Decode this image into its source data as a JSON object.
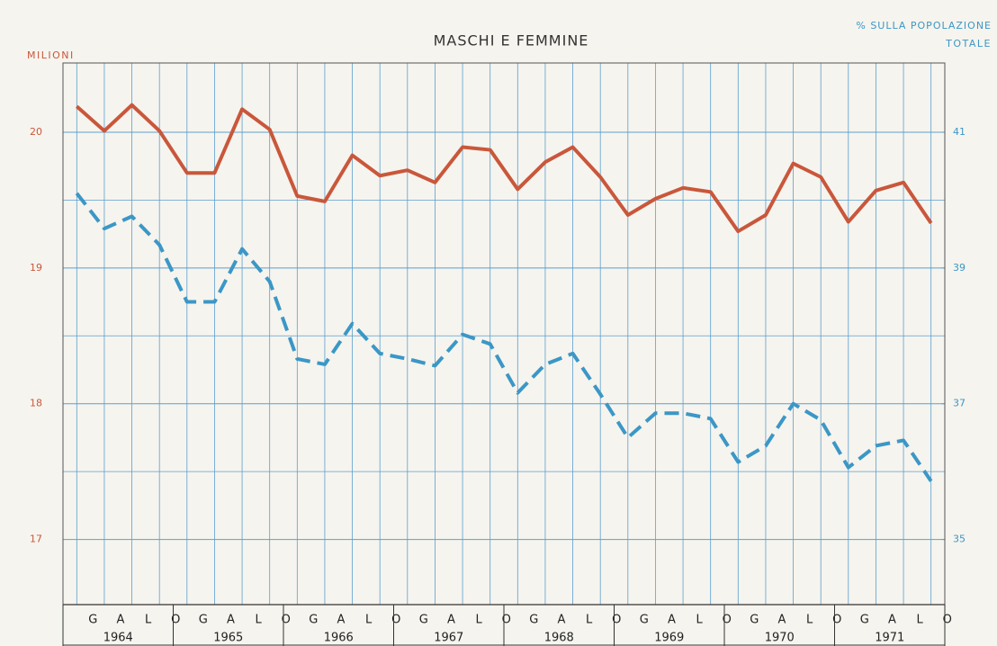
{
  "chart_data": {
    "type": "line",
    "title": "MASCHI E FEMMINE",
    "y_label": "MILIONI",
    "y2_label": [
      "% SULLA POPOLAZIONE",
      "TOTALE"
    ],
    "categories": [
      "G",
      "A",
      "L",
      "O",
      "G",
      "A",
      "L",
      "O",
      "G",
      "A",
      "L",
      "O",
      "G",
      "A",
      "L",
      "O",
      "G",
      "A",
      "L",
      "O",
      "G",
      "A",
      "L",
      "O",
      "G",
      "A",
      "L",
      "O",
      "G",
      "A",
      "L",
      "O"
    ],
    "groups": [
      "1964",
      "1965",
      "1966",
      "1967",
      "1968",
      "1969",
      "1970",
      "1971"
    ],
    "series": [
      {
        "color": "#c9573b",
        "dashed": false,
        "values": [
          20.19,
          20.01,
          20.2,
          20.01,
          19.7,
          19.7,
          20.17,
          20.02,
          19.53,
          19.49,
          19.83,
          19.68,
          19.72,
          19.63,
          19.89,
          19.87,
          19.58,
          19.78,
          19.89,
          19.67,
          19.39,
          19.51,
          19.59,
          19.56,
          19.27,
          19.39,
          19.77,
          19.67,
          19.34,
          19.57,
          19.63,
          19.33
        ]
      },
      {
        "color": "#3b97c6",
        "dashed": true,
        "values": [
          19.55,
          19.29,
          19.38,
          19.17,
          18.75,
          18.75,
          19.14,
          18.9,
          18.33,
          18.29,
          18.59,
          18.37,
          18.33,
          18.28,
          18.51,
          18.44,
          18.08,
          18.29,
          18.37,
          18.07,
          17.75,
          17.93,
          17.93,
          17.89,
          17.57,
          17.69,
          18.0,
          17.88,
          17.53,
          17.69,
          17.73,
          17.43
        ]
      }
    ],
    "ylim": [
      16.52,
      20.51
    ],
    "yticks": [
      17,
      18,
      19,
      20
    ],
    "minor_yticks": [
      17.5,
      18.5,
      19.5
    ],
    "y2lim": [
      34.04,
      42.02
    ],
    "y2ticks": [
      35,
      37,
      39,
      41
    ],
    "grid": true
  }
}
